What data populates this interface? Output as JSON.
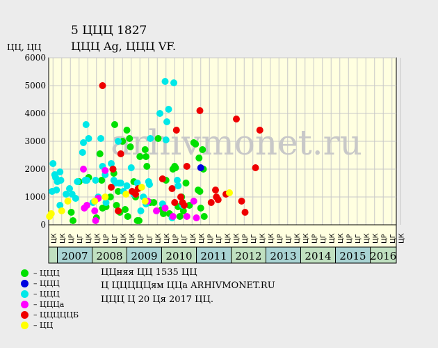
{
  "title": "5 ЦЦЦ 1827",
  "subtitle": "ЦЦЦ Ag, ЦЦЦ VF.",
  "ylabel": "ЦЦ, ЦЦ",
  "watermark": "arhivmonet.ru",
  "colors": {
    "background": "#ececec",
    "plot_bg": "#ffffe0",
    "grid": "#c8c8c8",
    "year_band_a": "#c0e0c0",
    "year_band_b": "#a9d3d3",
    "watermark": "#c8c8c8"
  },
  "legend": [
    {
      "color": "#00e000",
      "label": "– ЦЦЦ"
    },
    {
      "color": "#0000e0",
      "label": "– ЦЦЦ"
    },
    {
      "color": "#00e8e8",
      "label": "– ЦЦЦ"
    },
    {
      "color": "#ff00ff",
      "label": "– ЦЦЦа"
    },
    {
      "color": "#ee0000",
      "label": "– ЦЦЦЦЦБ"
    },
    {
      "color": "#ffff00",
      "label": "– ЦЦ"
    }
  ],
  "notes": [
    "ЦЦняя ЦЦ 1535 ЦЦ",
    "Ц ЦЦЦЦЦям ЦЦа ARHIVMONET.RU",
    "ЦЦЦ Ц 20 Ця 2017 ЦЦ."
  ],
  "chart_data": {
    "type": "scatter",
    "ylim": [
      0,
      6000
    ],
    "yticks": [
      0,
      1000,
      2000,
      3000,
      4000,
      5000,
      6000
    ],
    "grid": true,
    "x_range": [
      0,
      40
    ],
    "x_ticks": [
      "ЦК",
      "ЦК",
      "ЦР",
      "ЦГ",
      "ЦК",
      "ЦК",
      "ЦР",
      "ЦГ",
      "ЦК",
      "ЦК",
      "ЦР",
      "ЦГ",
      "ЦК",
      "ЦК",
      "ЦР",
      "ЦГ",
      "ЦК",
      "ЦК",
      "ЦР",
      "ЦГ",
      "ЦК",
      "ЦК",
      "ЦР",
      "ЦГ",
      "ЦК",
      "ЦК",
      "ЦР",
      "ЦГ",
      "ЦК",
      "ЦК",
      "ЦР",
      "ЦГ",
      "ЦК",
      "ЦК",
      "ЦР",
      "ЦГ",
      "ЦК",
      "ЦК",
      "ЦР",
      "ЦГ",
      "ЦК"
    ],
    "years": [
      {
        "label": "",
        "start": 0,
        "end": 1
      },
      {
        "label": "2007",
        "start": 1,
        "end": 5
      },
      {
        "label": "2008",
        "start": 5,
        "end": 9
      },
      {
        "label": "2009",
        "start": 9,
        "end": 13
      },
      {
        "label": "2010",
        "start": 13,
        "end": 17
      },
      {
        "label": "2011",
        "start": 17,
        "end": 21
      },
      {
        "label": "2012",
        "start": 21,
        "end": 25
      },
      {
        "label": "2013",
        "start": 25,
        "end": 29
      },
      {
        "label": "2014",
        "start": 29,
        "end": 33
      },
      {
        "label": "2015",
        "start": 33,
        "end": 37
      },
      {
        "label": "2016",
        "start": 37,
        "end": 40
      }
    ],
    "series": [
      {
        "color": "#00e000",
        "points": [
          [
            2.6,
            450
          ],
          [
            2.8,
            150
          ],
          [
            3.5,
            1550
          ],
          [
            4.6,
            1700
          ],
          [
            5.9,
            2550
          ],
          [
            5.5,
            250
          ],
          [
            6.1,
            1600
          ],
          [
            6.2,
            600
          ],
          [
            6.6,
            650
          ],
          [
            7.1,
            1000
          ],
          [
            7.4,
            2000
          ],
          [
            7.5,
            1850
          ],
          [
            7.6,
            3600
          ],
          [
            7.8,
            700
          ],
          [
            8.0,
            1200
          ],
          [
            8.2,
            450
          ],
          [
            8.5,
            3000
          ],
          [
            8.8,
            550
          ],
          [
            9.0,
            3400
          ],
          [
            9.1,
            300
          ],
          [
            9.3,
            3100
          ],
          [
            9.4,
            2800
          ],
          [
            9.8,
            1550
          ],
          [
            10.0,
            1000
          ],
          [
            10.2,
            150
          ],
          [
            10.4,
            150
          ],
          [
            10.5,
            2450
          ],
          [
            11.1,
            2700
          ],
          [
            11.2,
            2450
          ],
          [
            11.3,
            2100
          ],
          [
            11.7,
            800
          ],
          [
            12.1,
            800
          ],
          [
            12.6,
            3100
          ],
          [
            13.0,
            550
          ],
          [
            13.2,
            400
          ],
          [
            13.5,
            1600
          ],
          [
            13.9,
            400
          ],
          [
            14.3,
            2000
          ],
          [
            14.5,
            2100
          ],
          [
            14.6,
            2050
          ],
          [
            14.9,
            650
          ],
          [
            15.1,
            300
          ],
          [
            15.3,
            1000
          ],
          [
            15.5,
            500
          ],
          [
            15.8,
            1500
          ],
          [
            16.2,
            700
          ],
          [
            16.7,
            2950
          ],
          [
            16.9,
            2900
          ],
          [
            17.2,
            1250
          ],
          [
            17.3,
            2400
          ],
          [
            17.4,
            1200
          ],
          [
            17.5,
            600
          ],
          [
            17.7,
            2700
          ],
          [
            17.8,
            2000
          ],
          [
            17.9,
            300
          ]
        ]
      },
      {
        "color": "#0000e0",
        "points": [
          [
            17.5,
            2050
          ]
        ]
      },
      {
        "color": "#00e8e8",
        "points": [
          [
            0.4,
            1200
          ],
          [
            0.5,
            2200
          ],
          [
            0.7,
            1800
          ],
          [
            0.8,
            1700
          ],
          [
            0.9,
            1250
          ],
          [
            1.0,
            1550
          ],
          [
            1.3,
            1900
          ],
          [
            1.4,
            1600
          ],
          [
            1.3,
            700
          ],
          [
            2.0,
            1100
          ],
          [
            2.4,
            1300
          ],
          [
            2.7,
            1100
          ],
          [
            3.1,
            950
          ],
          [
            3.3,
            1550
          ],
          [
            3.9,
            2600
          ],
          [
            4.0,
            2950
          ],
          [
            4.2,
            1600
          ],
          [
            4.3,
            3600
          ],
          [
            4.4,
            1600
          ],
          [
            4.6,
            3100
          ],
          [
            5.1,
            800
          ],
          [
            5.4,
            1600
          ],
          [
            5.7,
            1000
          ],
          [
            6.0,
            3100
          ],
          [
            6.2,
            2100
          ],
          [
            6.5,
            1800
          ],
          [
            6.6,
            800
          ],
          [
            7.2,
            2200
          ],
          [
            7.5,
            1600
          ],
          [
            7.7,
            1500
          ],
          [
            8.0,
            3000
          ],
          [
            8.1,
            1500
          ],
          [
            8.3,
            1500
          ],
          [
            8.6,
            1200
          ],
          [
            9.0,
            1400
          ],
          [
            9.5,
            2050
          ],
          [
            9.8,
            1100
          ],
          [
            10.2,
            1500
          ],
          [
            10.6,
            500
          ],
          [
            10.9,
            1000
          ],
          [
            11.2,
            750
          ],
          [
            11.5,
            1550
          ],
          [
            11.6,
            1450
          ],
          [
            11.7,
            3100
          ],
          [
            12.8,
            4000
          ],
          [
            13.1,
            750
          ],
          [
            13.4,
            5150
          ],
          [
            13.5,
            3050
          ],
          [
            13.6,
            3700
          ],
          [
            13.8,
            4150
          ],
          [
            14.2,
            250
          ],
          [
            14.4,
            5100
          ],
          [
            14.8,
            1600
          ],
          [
            14.9,
            1400
          ],
          [
            15.4,
            700
          ]
        ]
      },
      {
        "color": "#ff00ff",
        "points": [
          [
            4.0,
            2000
          ],
          [
            4.1,
            600
          ],
          [
            4.4,
            700
          ],
          [
            5.3,
            500
          ],
          [
            5.4,
            150
          ],
          [
            5.7,
            950
          ],
          [
            6.5,
            1950
          ],
          [
            11.4,
            850
          ],
          [
            12.4,
            500
          ],
          [
            13.4,
            600
          ],
          [
            14.3,
            300
          ],
          [
            15.9,
            300
          ],
          [
            16.7,
            850
          ],
          [
            17.0,
            250
          ]
        ]
      },
      {
        "color": "#ee0000",
        "points": [
          [
            6.2,
            5000
          ],
          [
            7.2,
            1350
          ],
          [
            7.4,
            2000
          ],
          [
            8.0,
            500
          ],
          [
            8.3,
            2550
          ],
          [
            9.6,
            1200
          ],
          [
            10.0,
            1100
          ],
          [
            10.3,
            1300
          ],
          [
            13.1,
            1650
          ],
          [
            14.2,
            1300
          ],
          [
            14.5,
            800
          ],
          [
            14.7,
            3400
          ],
          [
            15.2,
            1000
          ],
          [
            15.4,
            800
          ],
          [
            15.6,
            700
          ],
          [
            15.9,
            2100
          ],
          [
            17.4,
            4100
          ],
          [
            18.7,
            800
          ],
          [
            19.2,
            1250
          ],
          [
            19.3,
            1000
          ],
          [
            19.5,
            900
          ],
          [
            20.4,
            1100
          ],
          [
            21.6,
            3800
          ],
          [
            22.2,
            850
          ],
          [
            22.6,
            450
          ],
          [
            23.8,
            2050
          ],
          [
            24.3,
            3400
          ]
        ]
      },
      {
        "color": "#ffff00",
        "points": [
          [
            0.1,
            300
          ],
          [
            0.3,
            400
          ],
          [
            1.5,
            500
          ],
          [
            2.2,
            850
          ],
          [
            5.3,
            850
          ],
          [
            6.5,
            1000
          ],
          [
            8.9,
            1100
          ],
          [
            10.7,
            1350
          ],
          [
            11.1,
            850
          ],
          [
            20.8,
            1150
          ]
        ]
      }
    ]
  }
}
